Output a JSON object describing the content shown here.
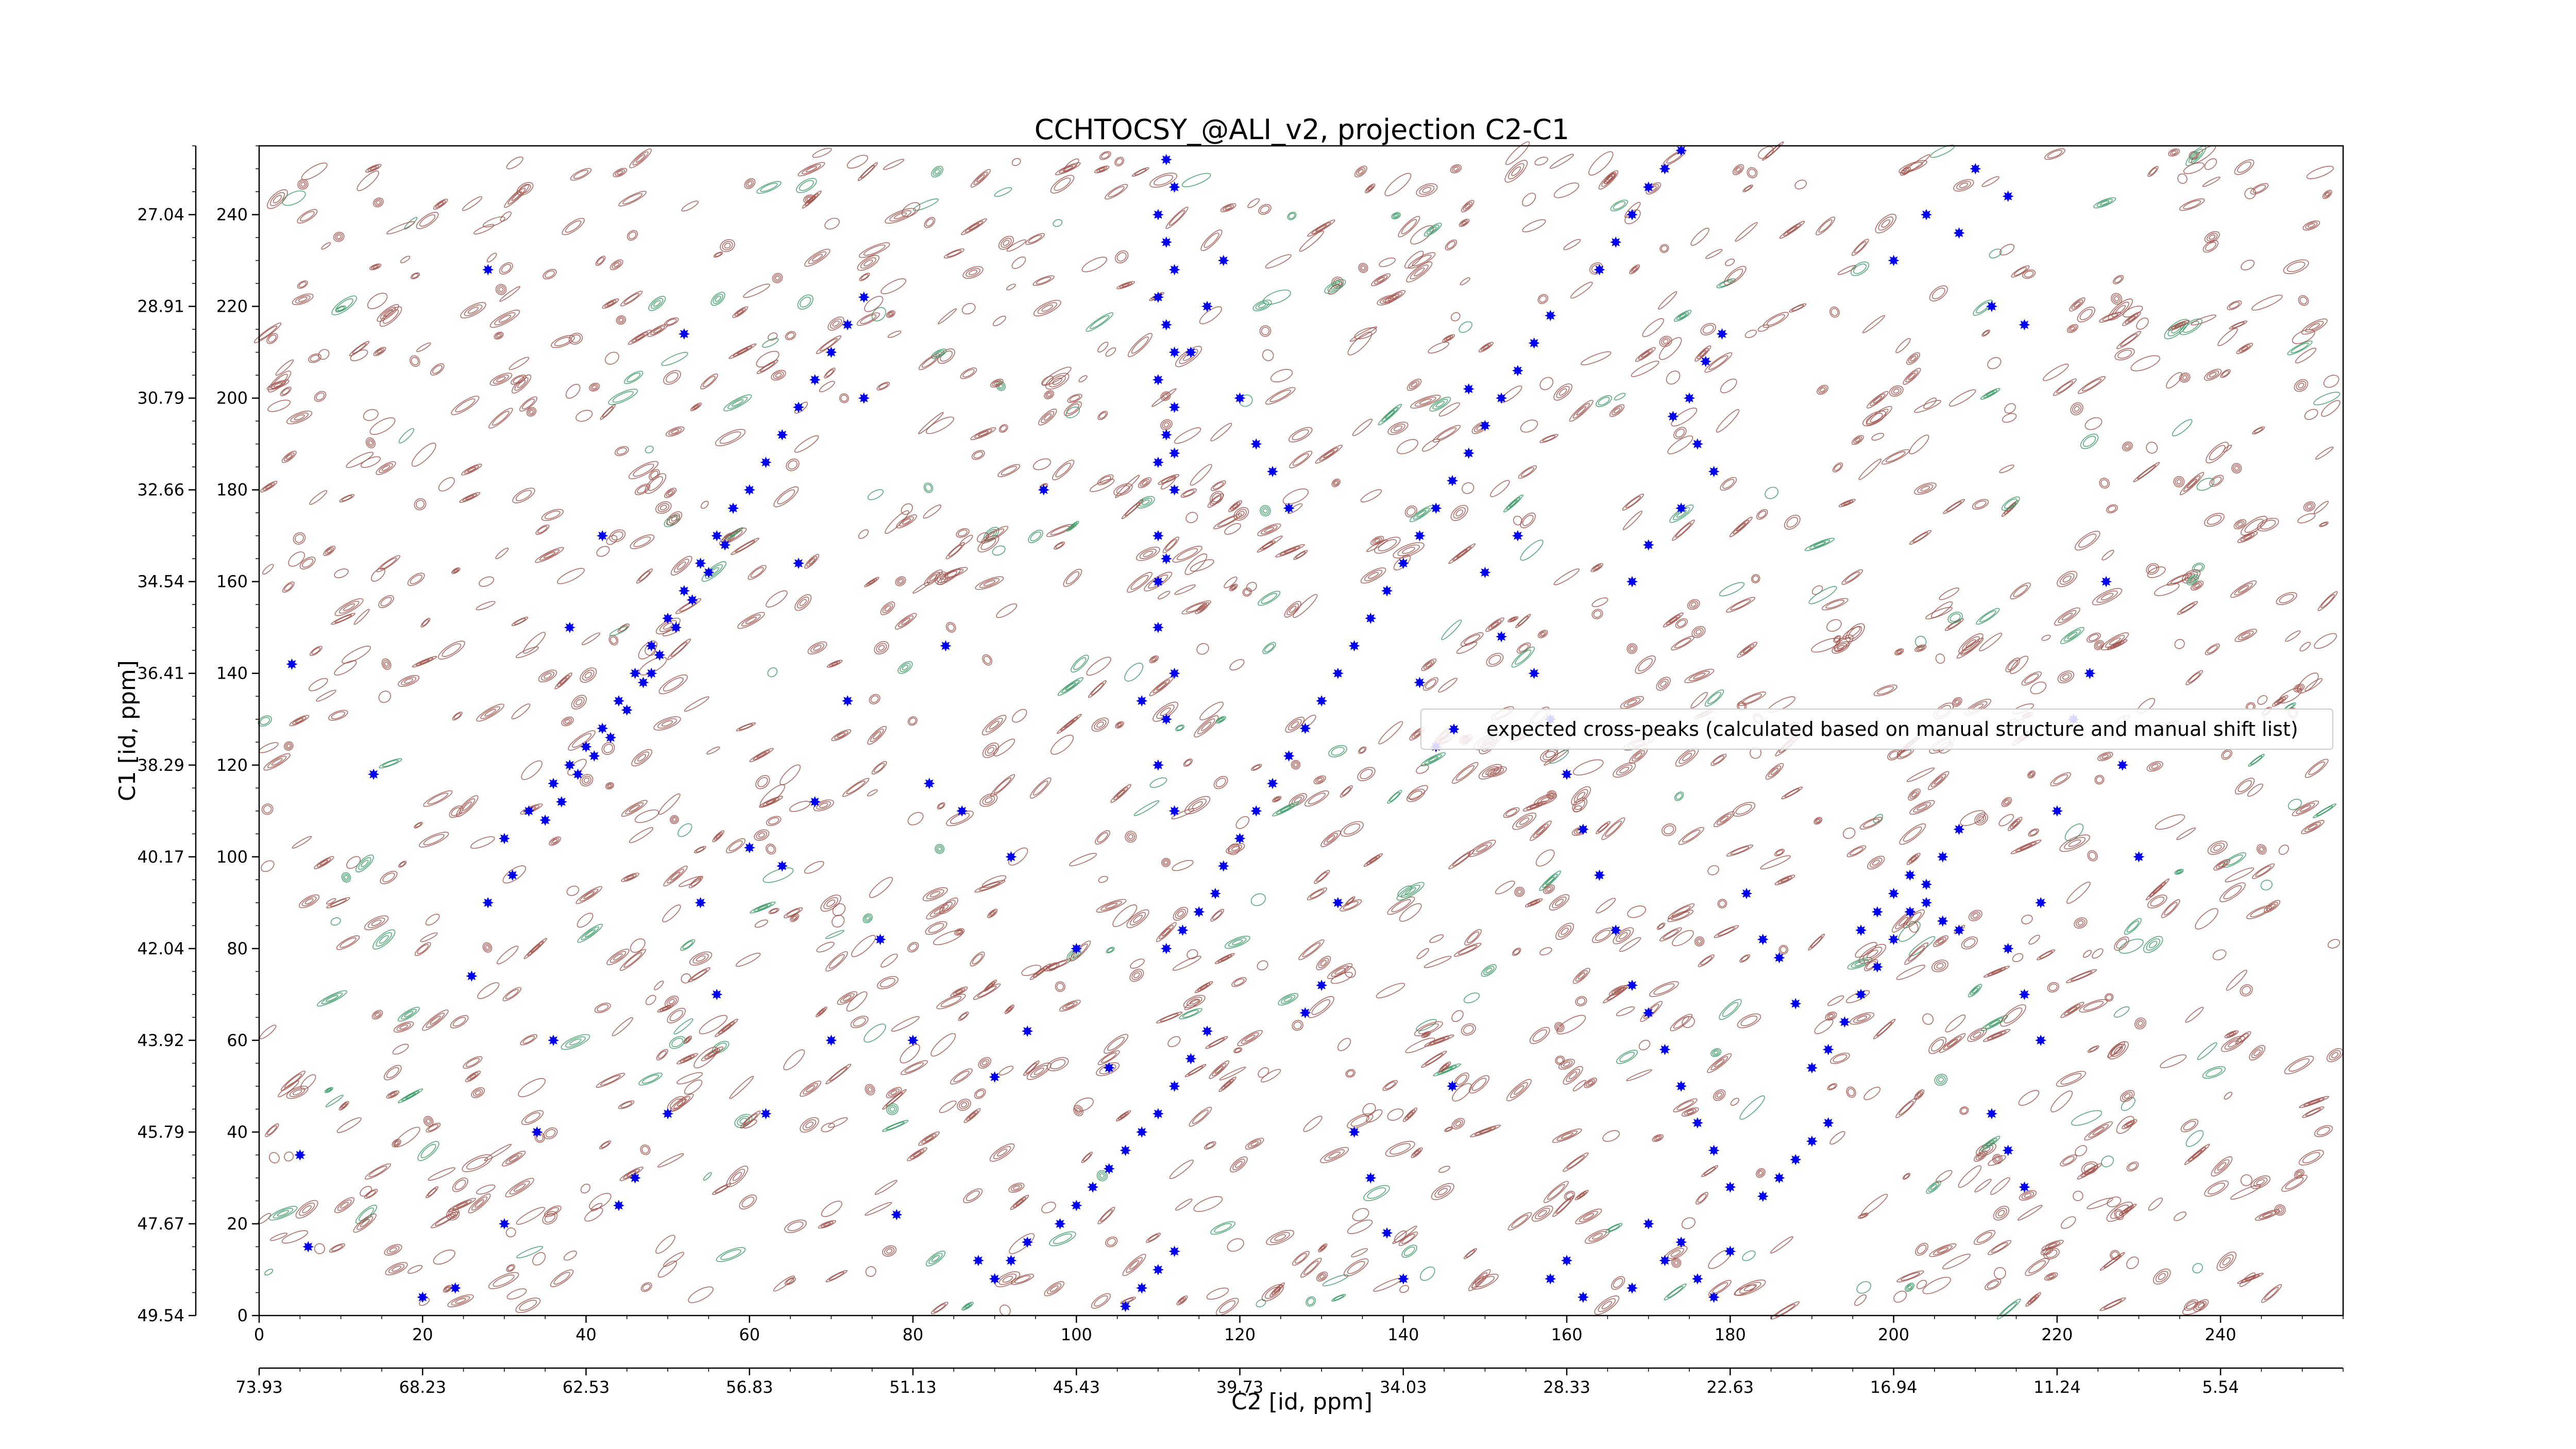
{
  "chart_data": {
    "type": "scatter",
    "title": "CCHTOCSY_@ALI_v2, projection C2-C1",
    "xlabel": "C2 [id, ppm]",
    "ylabel": "C1 [id, ppm]",
    "x_index_range": [
      0,
      255
    ],
    "y_index_range": [
      0,
      255
    ],
    "x_index_ticks": [
      "0",
      "20",
      "40",
      "60",
      "80",
      "100",
      "120",
      "140",
      "160",
      "180",
      "200",
      "220",
      "240"
    ],
    "x_ppm_ticks": [
      "73.93",
      "68.23",
      "62.53",
      "56.83",
      "51.13",
      "45.43",
      "39.73",
      "34.03",
      "28.33",
      "22.63",
      "16.94",
      "11.24",
      "5.54"
    ],
    "y_index_ticks": [
      "0",
      "20",
      "40",
      "60",
      "80",
      "100",
      "120",
      "140",
      "160",
      "180",
      "200",
      "220",
      "240"
    ],
    "y_ppm_ticks": [
      "49.54",
      "47.67",
      "45.79",
      "43.92",
      "42.04",
      "40.17",
      "38.29",
      "36.41",
      "34.54",
      "32.66",
      "30.79",
      "28.91",
      "27.04"
    ],
    "legend": {
      "position": "center-right",
      "entry": "expected cross-peaks (calculated based on manual structure and manual shift list)"
    },
    "colors": {
      "marker": "#0000ee",
      "contour_positive": "#a0524b",
      "contour_negative": "#3a9a66",
      "axes": "#000000"
    },
    "series": [
      {
        "name": "expected cross-peaks (calculated based on manual structure and manual shift list)",
        "points": [
          [
            30,
            104
          ],
          [
            33,
            110
          ],
          [
            36,
            116
          ],
          [
            38,
            120
          ],
          [
            40,
            124
          ],
          [
            42,
            128
          ],
          [
            44,
            134
          ],
          [
            46,
            140
          ],
          [
            48,
            146
          ],
          [
            50,
            152
          ],
          [
            52,
            158
          ],
          [
            54,
            164
          ],
          [
            56,
            170
          ],
          [
            58,
            176
          ],
          [
            60,
            180
          ],
          [
            62,
            186
          ],
          [
            64,
            192
          ],
          [
            66,
            198
          ],
          [
            68,
            204
          ],
          [
            70,
            210
          ],
          [
            72,
            216
          ],
          [
            74,
            222
          ],
          [
            28,
            90
          ],
          [
            31,
            96
          ],
          [
            35,
            108
          ],
          [
            37,
            112
          ],
          [
            39,
            118
          ],
          [
            41,
            122
          ],
          [
            43,
            126
          ],
          [
            45,
            132
          ],
          [
            47,
            138
          ],
          [
            49,
            144
          ],
          [
            51,
            150
          ],
          [
            53,
            156
          ],
          [
            55,
            162
          ],
          [
            57,
            168
          ],
          [
            118,
            98
          ],
          [
            120,
            104
          ],
          [
            122,
            110
          ],
          [
            124,
            116
          ],
          [
            126,
            122
          ],
          [
            128,
            128
          ],
          [
            130,
            134
          ],
          [
            132,
            140
          ],
          [
            134,
            146
          ],
          [
            136,
            152
          ],
          [
            138,
            158
          ],
          [
            140,
            164
          ],
          [
            142,
            170
          ],
          [
            144,
            176
          ],
          [
            146,
            182
          ],
          [
            148,
            188
          ],
          [
            150,
            194
          ],
          [
            152,
            200
          ],
          [
            154,
            206
          ],
          [
            156,
            212
          ],
          [
            158,
            218
          ],
          [
            164,
            228
          ],
          [
            166,
            234
          ],
          [
            168,
            240
          ],
          [
            170,
            246
          ],
          [
            172,
            250
          ],
          [
            174,
            254
          ],
          [
            111,
            80
          ],
          [
            113,
            84
          ],
          [
            115,
            88
          ],
          [
            117,
            92
          ],
          [
            98,
            20
          ],
          [
            100,
            24
          ],
          [
            102,
            28
          ],
          [
            104,
            32
          ],
          [
            106,
            36
          ],
          [
            108,
            40
          ],
          [
            110,
            44
          ],
          [
            112,
            50
          ],
          [
            114,
            56
          ],
          [
            116,
            62
          ],
          [
            90,
            8
          ],
          [
            92,
            12
          ],
          [
            94,
            16
          ],
          [
            106,
            2
          ],
          [
            108,
            6
          ],
          [
            110,
            10
          ],
          [
            112,
            14
          ],
          [
            110,
            160
          ],
          [
            111,
            165
          ],
          [
            110,
            170
          ],
          [
            112,
            180
          ],
          [
            110,
            186
          ],
          [
            111,
            192
          ],
          [
            112,
            198
          ],
          [
            110,
            204
          ],
          [
            112,
            210
          ],
          [
            111,
            216
          ],
          [
            110,
            222
          ],
          [
            112,
            228
          ],
          [
            111,
            234
          ],
          [
            110,
            240
          ],
          [
            112,
            246
          ],
          [
            111,
            252
          ],
          [
            110,
            150
          ],
          [
            112,
            140
          ],
          [
            111,
            130
          ],
          [
            110,
            120
          ],
          [
            112,
            110
          ],
          [
            175,
            200
          ],
          [
            177,
            208
          ],
          [
            179,
            214
          ],
          [
            173,
            196
          ],
          [
            176,
            190
          ],
          [
            178,
            184
          ],
          [
            174,
            176
          ],
          [
            170,
            168
          ],
          [
            168,
            160
          ],
          [
            172,
            12
          ],
          [
            174,
            16
          ],
          [
            170,
            20
          ],
          [
            176,
            8
          ],
          [
            168,
            6
          ],
          [
            178,
            4
          ],
          [
            180,
            14
          ],
          [
            158,
            8
          ],
          [
            160,
            12
          ],
          [
            162,
            4
          ],
          [
            186,
            30
          ],
          [
            188,
            34
          ],
          [
            190,
            38
          ],
          [
            184,
            26
          ],
          [
            192,
            42
          ],
          [
            192,
            58
          ],
          [
            194,
            64
          ],
          [
            196,
            70
          ],
          [
            198,
            76
          ],
          [
            200,
            82
          ],
          [
            202,
            88
          ],
          [
            204,
            94
          ],
          [
            206,
            100
          ],
          [
            208,
            106
          ],
          [
            196,
            84
          ],
          [
            198,
            88
          ],
          [
            200,
            92
          ],
          [
            202,
            96
          ],
          [
            204,
            90
          ],
          [
            206,
            86
          ],
          [
            208,
            84
          ],
          [
            214,
            80
          ],
          [
            216,
            70
          ],
          [
            218,
            60
          ],
          [
            5,
            35
          ],
          [
            6,
            15
          ],
          [
            4,
            142
          ],
          [
            14,
            118
          ],
          [
            20,
            4
          ],
          [
            24,
            6
          ],
          [
            26,
            74
          ],
          [
            28,
            228
          ],
          [
            30,
            20
          ],
          [
            34,
            40
          ],
          [
            36,
            60
          ],
          [
            38,
            150
          ],
          [
            42,
            170
          ],
          [
            44,
            24
          ],
          [
            46,
            30
          ],
          [
            48,
            140
          ],
          [
            50,
            44
          ],
          [
            52,
            214
          ],
          [
            54,
            90
          ],
          [
            56,
            70
          ],
          [
            60,
            102
          ],
          [
            62,
            44
          ],
          [
            64,
            98
          ],
          [
            66,
            164
          ],
          [
            68,
            112
          ],
          [
            70,
            60
          ],
          [
            72,
            134
          ],
          [
            74,
            200
          ],
          [
            76,
            82
          ],
          [
            78,
            22
          ],
          [
            80,
            60
          ],
          [
            82,
            116
          ],
          [
            84,
            146
          ],
          [
            86,
            110
          ],
          [
            88,
            12
          ],
          [
            90,
            52
          ],
          [
            92,
            100
          ],
          [
            94,
            62
          ],
          [
            96,
            180
          ],
          [
            100,
            80
          ],
          [
            104,
            54
          ],
          [
            108,
            134
          ],
          [
            112,
            188
          ],
          [
            114,
            210
          ],
          [
            116,
            220
          ],
          [
            118,
            230
          ],
          [
            120,
            200
          ],
          [
            122,
            190
          ],
          [
            124,
            184
          ],
          [
            126,
            176
          ],
          [
            128,
            66
          ],
          [
            130,
            72
          ],
          [
            132,
            90
          ],
          [
            134,
            40
          ],
          [
            136,
            30
          ],
          [
            138,
            18
          ],
          [
            140,
            8
          ],
          [
            142,
            138
          ],
          [
            144,
            124
          ],
          [
            146,
            50
          ],
          [
            148,
            202
          ],
          [
            150,
            162
          ],
          [
            152,
            148
          ],
          [
            154,
            170
          ],
          [
            156,
            140
          ],
          [
            158,
            130
          ],
          [
            160,
            118
          ],
          [
            162,
            106
          ],
          [
            164,
            96
          ],
          [
            166,
            84
          ],
          [
            168,
            72
          ],
          [
            170,
            66
          ],
          [
            172,
            58
          ],
          [
            174,
            50
          ],
          [
            176,
            42
          ],
          [
            178,
            36
          ],
          [
            180,
            28
          ],
          [
            182,
            92
          ],
          [
            184,
            82
          ],
          [
            186,
            78
          ],
          [
            188,
            68
          ],
          [
            190,
            54
          ],
          [
            212,
            44
          ],
          [
            214,
            36
          ],
          [
            216,
            28
          ],
          [
            218,
            90
          ],
          [
            220,
            110
          ],
          [
            222,
            130
          ],
          [
            224,
            140
          ],
          [
            226,
            160
          ],
          [
            228,
            120
          ],
          [
            230,
            100
          ],
          [
            200,
            230
          ],
          [
            204,
            240
          ],
          [
            208,
            236
          ],
          [
            210,
            250
          ],
          [
            212,
            220
          ],
          [
            214,
            244
          ],
          [
            216,
            216
          ]
        ]
      }
    ]
  }
}
